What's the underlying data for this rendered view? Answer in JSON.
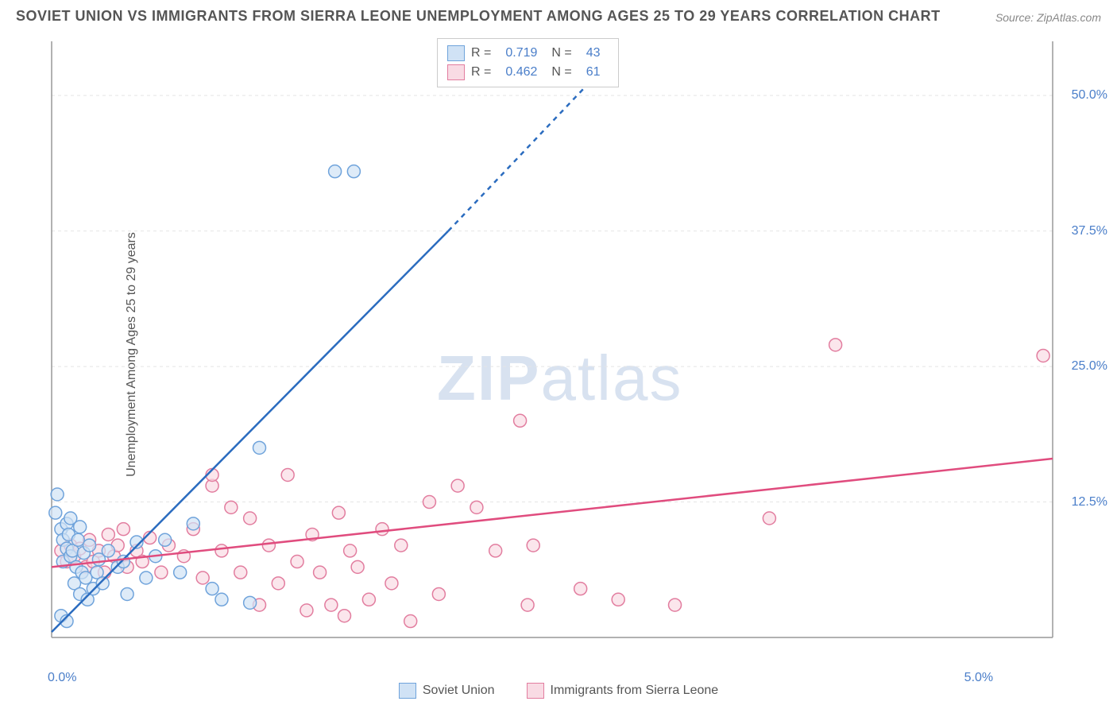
{
  "title": "SOVIET UNION VS IMMIGRANTS FROM SIERRA LEONE UNEMPLOYMENT AMONG AGES 25 TO 29 YEARS CORRELATION CHART",
  "source": "Source: ZipAtlas.com",
  "ylabel": "Unemployment Among Ages 25 to 29 years",
  "watermark_zip": "ZIP",
  "watermark_atlas": "atlas",
  "chart": {
    "type": "scatter",
    "xlim": [
      0,
      5.3
    ],
    "ylim": [
      0,
      55
    ],
    "xtick_labels": [
      "0.0%",
      "5.0%"
    ],
    "xtick_positions": [
      0,
      5.0
    ],
    "ytick_labels": [
      "12.5%",
      "25.0%",
      "37.5%",
      "50.0%"
    ],
    "ytick_positions": [
      12.5,
      25.0,
      37.5,
      50.0
    ],
    "grid_color": "#e5e5e5",
    "axis_color": "#999999",
    "background_color": "#ffffff",
    "marker_radius": 8,
    "marker_stroke_width": 1.5,
    "trend_line_width": 2.5,
    "series": [
      {
        "name": "Soviet Union",
        "fill_color": "#d0e2f5",
        "stroke_color": "#6fa3db",
        "line_color": "#2b6cbf",
        "r_value": "0.719",
        "n_value": "43",
        "trend": {
          "x1": 0,
          "y1": 0.5,
          "x2": 2.1,
          "y2": 37.5,
          "x2_dash": 3.0,
          "y2_dash": 54
        },
        "points": [
          [
            0.02,
            11.5
          ],
          [
            0.03,
            13.2
          ],
          [
            0.05,
            10.0
          ],
          [
            0.06,
            9.0
          ],
          [
            0.06,
            7.0
          ],
          [
            0.08,
            10.5
          ],
          [
            0.08,
            8.2
          ],
          [
            0.09,
            9.5
          ],
          [
            0.1,
            11.0
          ],
          [
            0.1,
            7.5
          ],
          [
            0.11,
            8.0
          ],
          [
            0.12,
            5.0
          ],
          [
            0.13,
            6.5
          ],
          [
            0.14,
            9.0
          ],
          [
            0.15,
            4.0
          ],
          [
            0.15,
            10.2
          ],
          [
            0.16,
            6.0
          ],
          [
            0.17,
            7.8
          ],
          [
            0.18,
            5.5
          ],
          [
            0.19,
            3.5
          ],
          [
            0.2,
            8.5
          ],
          [
            0.05,
            2.0
          ],
          [
            0.08,
            1.5
          ],
          [
            0.22,
            4.5
          ],
          [
            0.24,
            6.0
          ],
          [
            0.25,
            7.2
          ],
          [
            0.27,
            5.0
          ],
          [
            0.3,
            8.0
          ],
          [
            0.35,
            6.5
          ],
          [
            0.38,
            7.0
          ],
          [
            0.4,
            4.0
          ],
          [
            0.45,
            8.8
          ],
          [
            0.5,
            5.5
          ],
          [
            0.55,
            7.5
          ],
          [
            0.6,
            9.0
          ],
          [
            0.68,
            6.0
          ],
          [
            0.75,
            10.5
          ],
          [
            0.85,
            4.5
          ],
          [
            0.9,
            3.5
          ],
          [
            1.05,
            3.2
          ],
          [
            1.1,
            17.5
          ],
          [
            1.5,
            43.0
          ],
          [
            1.6,
            43.0
          ]
        ]
      },
      {
        "name": "Immigrants from Sierra Leone",
        "fill_color": "#f9dbe4",
        "stroke_color": "#e27d9f",
        "line_color": "#e04c7e",
        "r_value": "0.462",
        "n_value": "61",
        "trend": {
          "x1": 0,
          "y1": 6.5,
          "x2": 5.3,
          "y2": 16.5
        },
        "points": [
          [
            0.05,
            8.0
          ],
          [
            0.08,
            7.0
          ],
          [
            0.1,
            8.5
          ],
          [
            0.12,
            7.5
          ],
          [
            0.15,
            8.2
          ],
          [
            0.18,
            6.5
          ],
          [
            0.2,
            9.0
          ],
          [
            0.22,
            7.0
          ],
          [
            0.25,
            8.0
          ],
          [
            0.28,
            6.0
          ],
          [
            0.3,
            9.5
          ],
          [
            0.33,
            7.5
          ],
          [
            0.35,
            8.5
          ],
          [
            0.38,
            10.0
          ],
          [
            0.4,
            6.5
          ],
          [
            0.45,
            8.0
          ],
          [
            0.48,
            7.0
          ],
          [
            0.52,
            9.2
          ],
          [
            0.58,
            6.0
          ],
          [
            0.62,
            8.5
          ],
          [
            0.7,
            7.5
          ],
          [
            0.75,
            10.0
          ],
          [
            0.8,
            5.5
          ],
          [
            0.85,
            14.0
          ],
          [
            0.85,
            15.0
          ],
          [
            0.9,
            8.0
          ],
          [
            0.95,
            12.0
          ],
          [
            1.0,
            6.0
          ],
          [
            1.05,
            11.0
          ],
          [
            1.1,
            3.0
          ],
          [
            1.15,
            8.5
          ],
          [
            1.2,
            5.0
          ],
          [
            1.25,
            15.0
          ],
          [
            1.3,
            7.0
          ],
          [
            1.35,
            2.5
          ],
          [
            1.38,
            9.5
          ],
          [
            1.42,
            6.0
          ],
          [
            1.48,
            3.0
          ],
          [
            1.52,
            11.5
          ],
          [
            1.55,
            2.0
          ],
          [
            1.58,
            8.0
          ],
          [
            1.62,
            6.5
          ],
          [
            1.68,
            3.5
          ],
          [
            1.75,
            10.0
          ],
          [
            1.8,
            5.0
          ],
          [
            1.85,
            8.5
          ],
          [
            2.0,
            12.5
          ],
          [
            2.05,
            4.0
          ],
          [
            2.15,
            14.0
          ],
          [
            2.25,
            12.0
          ],
          [
            2.35,
            8.0
          ],
          [
            2.48,
            20.0
          ],
          [
            2.52,
            3.0
          ],
          [
            2.55,
            8.5
          ],
          [
            2.8,
            4.5
          ],
          [
            3.0,
            3.5
          ],
          [
            3.3,
            3.0
          ],
          [
            3.8,
            11.0
          ],
          [
            4.15,
            27.0
          ],
          [
            5.25,
            26.0
          ],
          [
            1.9,
            1.5
          ]
        ]
      }
    ],
    "legend_bottom": [
      {
        "label": "Soviet Union",
        "fill": "#d0e2f5",
        "stroke": "#6fa3db"
      },
      {
        "label": "Immigrants from Sierra Leone",
        "fill": "#f9dbe4",
        "stroke": "#e27d9f"
      }
    ]
  }
}
